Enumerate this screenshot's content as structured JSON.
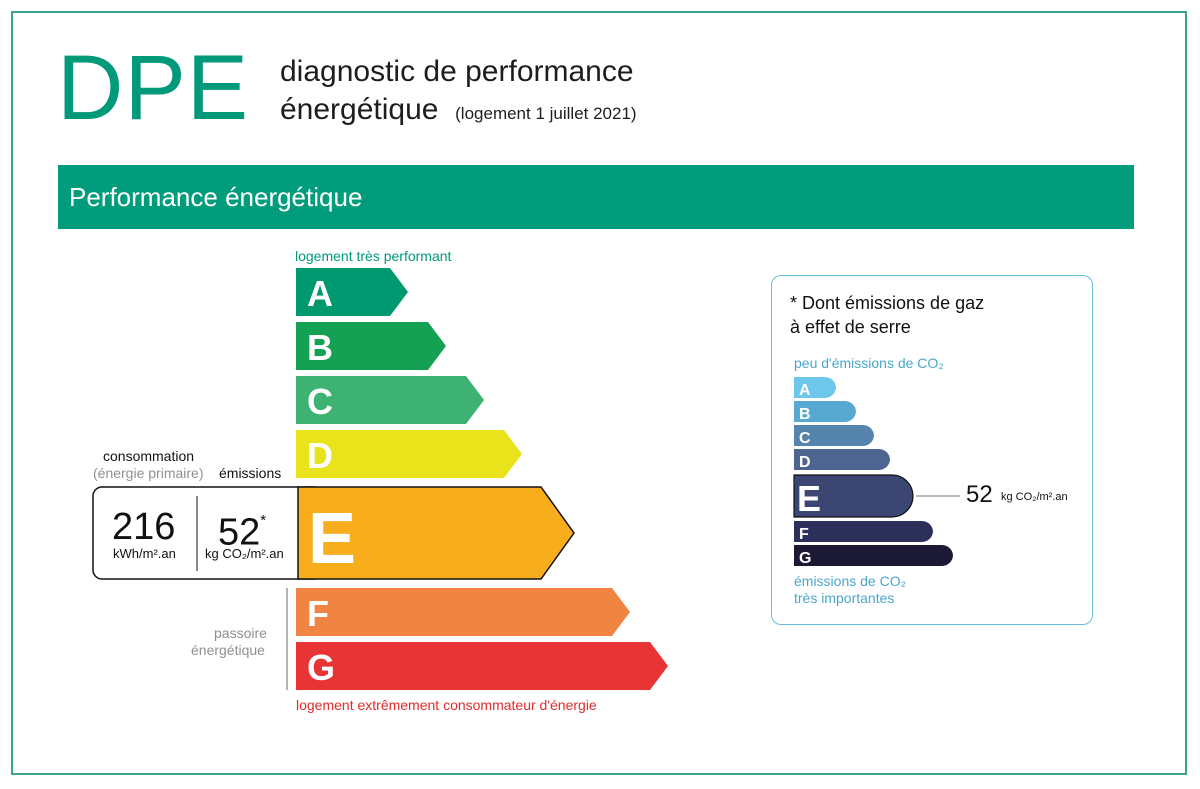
{
  "header": {
    "logo": "DPE",
    "title_line1": "diagnostic de performance",
    "title_line2": "énergétique",
    "title_note": "(logement 1 juillet 2021)"
  },
  "banner": {
    "title": "Performance énergétique"
  },
  "energy_scale": {
    "top_label": "logement très performant",
    "bottom_label": "logement extrêmement consommateur d'énergie",
    "classes": [
      {
        "letter": "A",
        "color": "#00986e"
      },
      {
        "letter": "B",
        "color": "#14a154"
      },
      {
        "letter": "C",
        "color": "#3eb273"
      },
      {
        "letter": "D",
        "color": "#e9e31b"
      },
      {
        "letter": "E",
        "color": "#f8ad1c"
      },
      {
        "letter": "F",
        "color": "#ef8443"
      },
      {
        "letter": "G",
        "color": "#e83434"
      }
    ],
    "current_class": "E",
    "passoire_label_1": "passoire",
    "passoire_label_2": "énergétique"
  },
  "readout": {
    "consumption_label": "consommation",
    "consumption_sub": "(énergie primaire)",
    "emissions_label": "émissions",
    "consumption_value": "216",
    "consumption_unit": "kWh/m².an",
    "emissions_value": "52",
    "emissions_star": "*",
    "emissions_unit": "kg CO₂/m².an"
  },
  "ghg_panel": {
    "note_line1": "* Dont émissions de gaz",
    "note_line2": "à effet de serre",
    "top_label": "peu d'émissions de CO₂",
    "bottom_label_1": "émissions de CO₂",
    "bottom_label_2": "très importantes",
    "classes": [
      {
        "letter": "A",
        "color": "#6ec6ea"
      },
      {
        "letter": "B",
        "color": "#58a9d2"
      },
      {
        "letter": "C",
        "color": "#5585ad"
      },
      {
        "letter": "D",
        "color": "#4e6591"
      },
      {
        "letter": "E",
        "color": "#3c4673"
      },
      {
        "letter": "F",
        "color": "#2b2f5a"
      },
      {
        "letter": "G",
        "color": "#1c1934"
      }
    ],
    "current_class": "E",
    "value": "52",
    "unit": "kg CO₂/m².an"
  }
}
